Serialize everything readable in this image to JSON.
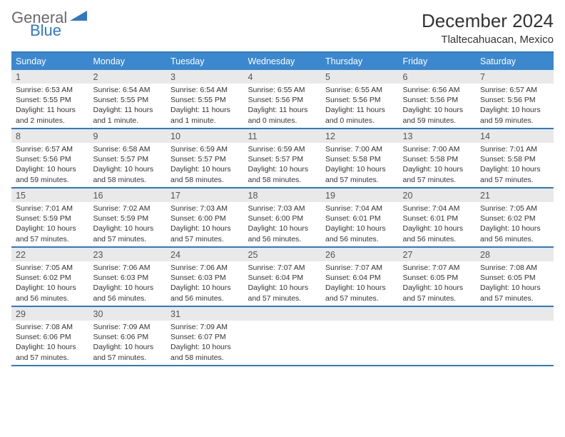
{
  "brand": {
    "word1": "General",
    "word2": "Blue"
  },
  "title": {
    "month": "December 2024",
    "location": "Tlaltecahuacan, Mexico"
  },
  "colors": {
    "accent": "#2f78c4",
    "header_bg": "#3b88cf",
    "day_num_bg": "#e9e9e9"
  },
  "day_headers": [
    "Sunday",
    "Monday",
    "Tuesday",
    "Wednesday",
    "Thursday",
    "Friday",
    "Saturday"
  ],
  "weeks": [
    [
      {
        "n": "1",
        "sr": "Sunrise: 6:53 AM",
        "ss": "Sunset: 5:55 PM",
        "dl": "Daylight: 11 hours and 2 minutes."
      },
      {
        "n": "2",
        "sr": "Sunrise: 6:54 AM",
        "ss": "Sunset: 5:55 PM",
        "dl": "Daylight: 11 hours and 1 minute."
      },
      {
        "n": "3",
        "sr": "Sunrise: 6:54 AM",
        "ss": "Sunset: 5:55 PM",
        "dl": "Daylight: 11 hours and 1 minute."
      },
      {
        "n": "4",
        "sr": "Sunrise: 6:55 AM",
        "ss": "Sunset: 5:56 PM",
        "dl": "Daylight: 11 hours and 0 minutes."
      },
      {
        "n": "5",
        "sr": "Sunrise: 6:55 AM",
        "ss": "Sunset: 5:56 PM",
        "dl": "Daylight: 11 hours and 0 minutes."
      },
      {
        "n": "6",
        "sr": "Sunrise: 6:56 AM",
        "ss": "Sunset: 5:56 PM",
        "dl": "Daylight: 10 hours and 59 minutes."
      },
      {
        "n": "7",
        "sr": "Sunrise: 6:57 AM",
        "ss": "Sunset: 5:56 PM",
        "dl": "Daylight: 10 hours and 59 minutes."
      }
    ],
    [
      {
        "n": "8",
        "sr": "Sunrise: 6:57 AM",
        "ss": "Sunset: 5:56 PM",
        "dl": "Daylight: 10 hours and 59 minutes."
      },
      {
        "n": "9",
        "sr": "Sunrise: 6:58 AM",
        "ss": "Sunset: 5:57 PM",
        "dl": "Daylight: 10 hours and 58 minutes."
      },
      {
        "n": "10",
        "sr": "Sunrise: 6:59 AM",
        "ss": "Sunset: 5:57 PM",
        "dl": "Daylight: 10 hours and 58 minutes."
      },
      {
        "n": "11",
        "sr": "Sunrise: 6:59 AM",
        "ss": "Sunset: 5:57 PM",
        "dl": "Daylight: 10 hours and 58 minutes."
      },
      {
        "n": "12",
        "sr": "Sunrise: 7:00 AM",
        "ss": "Sunset: 5:58 PM",
        "dl": "Daylight: 10 hours and 57 minutes."
      },
      {
        "n": "13",
        "sr": "Sunrise: 7:00 AM",
        "ss": "Sunset: 5:58 PM",
        "dl": "Daylight: 10 hours and 57 minutes."
      },
      {
        "n": "14",
        "sr": "Sunrise: 7:01 AM",
        "ss": "Sunset: 5:58 PM",
        "dl": "Daylight: 10 hours and 57 minutes."
      }
    ],
    [
      {
        "n": "15",
        "sr": "Sunrise: 7:01 AM",
        "ss": "Sunset: 5:59 PM",
        "dl": "Daylight: 10 hours and 57 minutes."
      },
      {
        "n": "16",
        "sr": "Sunrise: 7:02 AM",
        "ss": "Sunset: 5:59 PM",
        "dl": "Daylight: 10 hours and 57 minutes."
      },
      {
        "n": "17",
        "sr": "Sunrise: 7:03 AM",
        "ss": "Sunset: 6:00 PM",
        "dl": "Daylight: 10 hours and 57 minutes."
      },
      {
        "n": "18",
        "sr": "Sunrise: 7:03 AM",
        "ss": "Sunset: 6:00 PM",
        "dl": "Daylight: 10 hours and 56 minutes."
      },
      {
        "n": "19",
        "sr": "Sunrise: 7:04 AM",
        "ss": "Sunset: 6:01 PM",
        "dl": "Daylight: 10 hours and 56 minutes."
      },
      {
        "n": "20",
        "sr": "Sunrise: 7:04 AM",
        "ss": "Sunset: 6:01 PM",
        "dl": "Daylight: 10 hours and 56 minutes."
      },
      {
        "n": "21",
        "sr": "Sunrise: 7:05 AM",
        "ss": "Sunset: 6:02 PM",
        "dl": "Daylight: 10 hours and 56 minutes."
      }
    ],
    [
      {
        "n": "22",
        "sr": "Sunrise: 7:05 AM",
        "ss": "Sunset: 6:02 PM",
        "dl": "Daylight: 10 hours and 56 minutes."
      },
      {
        "n": "23",
        "sr": "Sunrise: 7:06 AM",
        "ss": "Sunset: 6:03 PM",
        "dl": "Daylight: 10 hours and 56 minutes."
      },
      {
        "n": "24",
        "sr": "Sunrise: 7:06 AM",
        "ss": "Sunset: 6:03 PM",
        "dl": "Daylight: 10 hours and 56 minutes."
      },
      {
        "n": "25",
        "sr": "Sunrise: 7:07 AM",
        "ss": "Sunset: 6:04 PM",
        "dl": "Daylight: 10 hours and 57 minutes."
      },
      {
        "n": "26",
        "sr": "Sunrise: 7:07 AM",
        "ss": "Sunset: 6:04 PM",
        "dl": "Daylight: 10 hours and 57 minutes."
      },
      {
        "n": "27",
        "sr": "Sunrise: 7:07 AM",
        "ss": "Sunset: 6:05 PM",
        "dl": "Daylight: 10 hours and 57 minutes."
      },
      {
        "n": "28",
        "sr": "Sunrise: 7:08 AM",
        "ss": "Sunset: 6:05 PM",
        "dl": "Daylight: 10 hours and 57 minutes."
      }
    ],
    [
      {
        "n": "29",
        "sr": "Sunrise: 7:08 AM",
        "ss": "Sunset: 6:06 PM",
        "dl": "Daylight: 10 hours and 57 minutes."
      },
      {
        "n": "30",
        "sr": "Sunrise: 7:09 AM",
        "ss": "Sunset: 6:06 PM",
        "dl": "Daylight: 10 hours and 57 minutes."
      },
      {
        "n": "31",
        "sr": "Sunrise: 7:09 AM",
        "ss": "Sunset: 6:07 PM",
        "dl": "Daylight: 10 hours and 58 minutes."
      },
      null,
      null,
      null,
      null
    ]
  ]
}
